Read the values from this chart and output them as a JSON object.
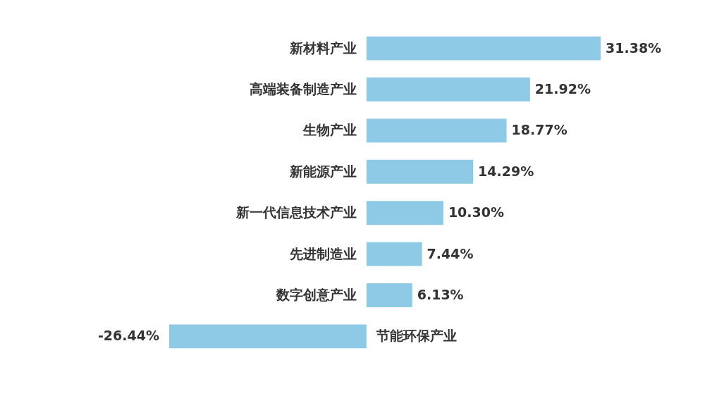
{
  "chart_data": {
    "type": "bar",
    "orientation": "horizontal",
    "categories": [
      "新材料产业",
      "高端装备制造产业",
      "生物产业",
      "新能源产业",
      "新一代信息技术产业",
      "先进制造业",
      "数字创意产业",
      "节能环保产业"
    ],
    "values": [
      31.38,
      21.92,
      18.77,
      14.29,
      10.3,
      7.44,
      6.13,
      -26.44
    ],
    "value_labels": [
      "31.38%",
      "21.92%",
      "18.77%",
      "14.29%",
      "10.30%",
      "7.44%",
      "6.13%",
      "-26.44%"
    ],
    "color": "#8ecae6"
  }
}
